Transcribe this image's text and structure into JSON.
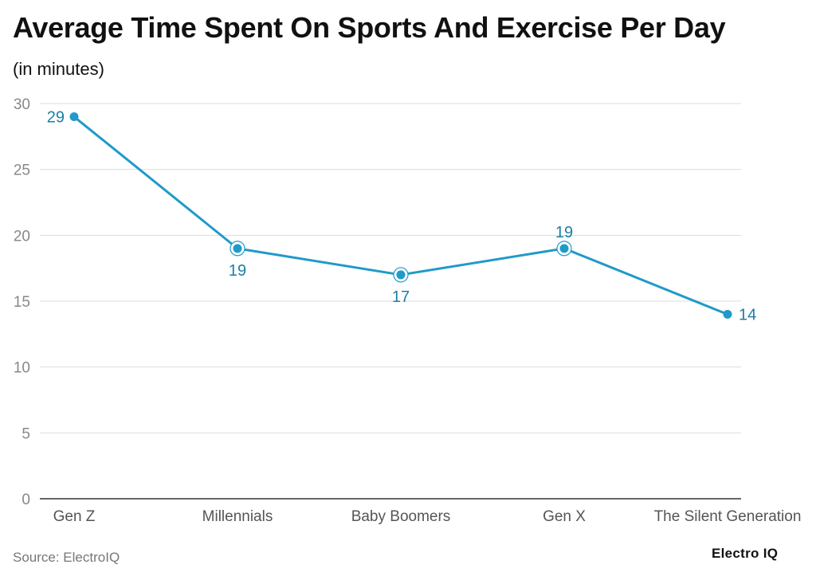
{
  "header": {
    "title": "Average Time Spent On Sports And Exercise Per Day",
    "subtitle": "(in minutes)"
  },
  "footer": {
    "source": "Source: ElectroIQ",
    "brand": "Electro IQ"
  },
  "colors": {
    "line": "#1f9ac9",
    "label": "#1a7ea8",
    "grid": "#dddddd",
    "axis": "#333333",
    "tick_text": "#888888",
    "category_text": "#555555"
  },
  "chart_data": {
    "type": "line",
    "categories": [
      "Gen Z",
      "Millennials",
      "Baby Boomers",
      "Gen X",
      "The Silent Generation"
    ],
    "series": [
      {
        "values": [
          29,
          19,
          17,
          19,
          14
        ]
      }
    ],
    "data_labels": [
      "29",
      "19",
      "17",
      "19",
      "14"
    ],
    "y_ticks": [
      "0",
      "5",
      "10",
      "15",
      "20",
      "25",
      "30"
    ],
    "ylim": [
      0,
      30
    ],
    "grid": true,
    "legend": "none"
  }
}
